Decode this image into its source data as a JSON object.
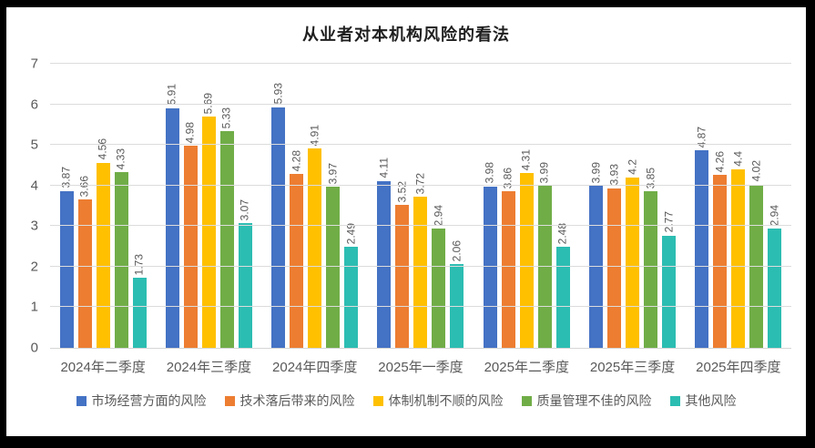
{
  "chart_data": {
    "type": "bar",
    "title": "从业者对本机构风险的看法",
    "categories": [
      "2024年二季度",
      "2024年三季度",
      "2024年四季度",
      "2025年一季度",
      "2025年二季度",
      "2025年三季度",
      "2025年四季度"
    ],
    "series": [
      {
        "name": "市场经营方面的风险",
        "color": "#4472C4",
        "values": [
          3.87,
          5.91,
          5.93,
          4.11,
          3.98,
          3.99,
          4.87
        ]
      },
      {
        "name": "技术落后带来的风险",
        "color": "#ED7D31",
        "values": [
          3.66,
          4.98,
          4.28,
          3.52,
          3.86,
          3.93,
          4.26
        ]
      },
      {
        "name": "体制机制不顺的风险",
        "color": "#FFC000",
        "values": [
          4.56,
          5.69,
          4.91,
          3.72,
          4.31,
          4.2,
          4.4
        ]
      },
      {
        "name": "质量管理不佳的风险",
        "color": "#70AD47",
        "values": [
          4.33,
          5.33,
          3.97,
          2.94,
          3.99,
          3.85,
          4.02
        ]
      },
      {
        "name": "其他风险",
        "color": "#2CBDB2",
        "values": [
          1.73,
          3.07,
          2.49,
          2.06,
          2.48,
          2.77,
          2.94
        ]
      }
    ],
    "ylim": [
      0,
      7
    ],
    "yticks": [
      0,
      1,
      2,
      3,
      4,
      5,
      6,
      7
    ],
    "grid": true,
    "data_labels": true,
    "label_rotation": 90,
    "legend_position": "bottom"
  },
  "colors": {
    "frame_border": "#000000",
    "background": "#FFFFFF",
    "axis_text": "#595959",
    "data_label_text": "#595959",
    "gridline": "#DCDCDC",
    "title_text": "#1F1F1F"
  }
}
